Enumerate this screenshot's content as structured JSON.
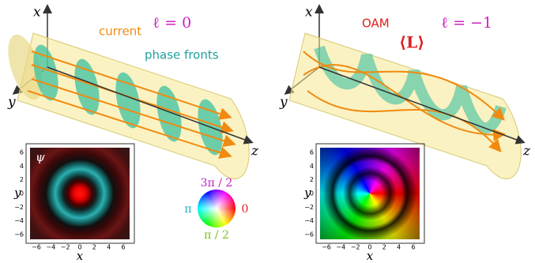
{
  "left_panel": {
    "axis_x": "x",
    "axis_y": "y",
    "axis_z": "z",
    "current_label": "current",
    "ell_label": "ℓ = 0",
    "phase_fronts_label": "phase fronts",
    "inset": {
      "symbol": "ψ",
      "x_label": "x",
      "y_label": "y",
      "ticks": [
        "−6",
        "−4",
        "−2",
        "0",
        "2",
        "4",
        "6"
      ]
    }
  },
  "right_panel": {
    "axis_x": "x",
    "axis_y": "y",
    "axis_z": "z",
    "oam_label": "OAM",
    "L_label": "⟨L⟩",
    "ell_label": "ℓ = −1",
    "inset": {
      "x_label": "x",
      "y_label": "y",
      "ticks": [
        "−6",
        "−4",
        "−2",
        "0",
        "2",
        "4",
        "6"
      ]
    }
  },
  "color_wheel": {
    "top": "3π / 2",
    "left": "π",
    "right": "0",
    "bottom": "π / 2"
  }
}
